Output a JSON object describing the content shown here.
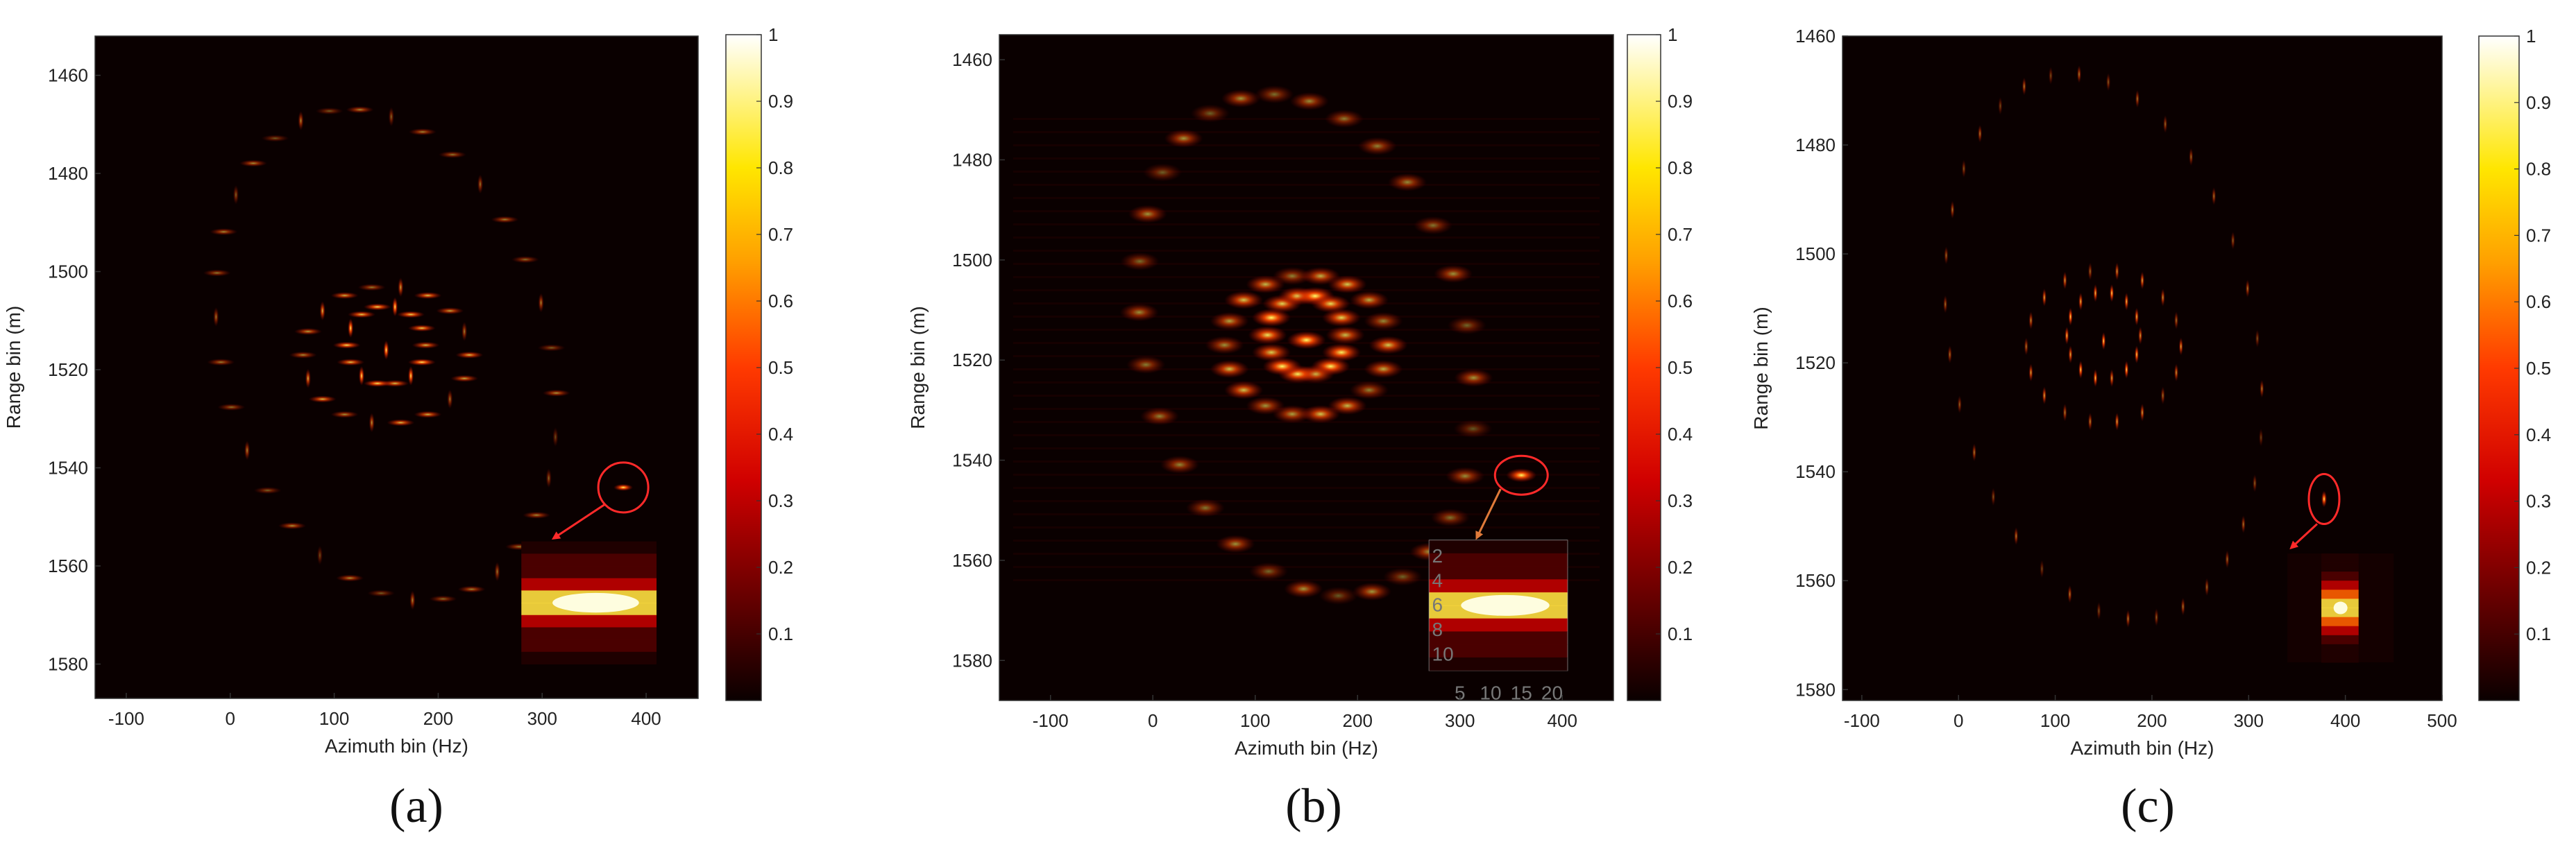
{
  "chart_data": [
    {
      "type": "heatmap",
      "panel_label": "(a)",
      "xlabel": "Azimuth bin (Hz)",
      "ylabel": "Range bin (m)",
      "xlim": [
        -130,
        450
      ],
      "ylim": [
        1452,
        1587
      ],
      "x_ticks": [
        "-100",
        "0",
        "100",
        "200",
        "300",
        "400"
      ],
      "y_ticks": [
        "1460",
        "1480",
        "1500",
        "1520",
        "1540",
        "1560",
        "1580"
      ],
      "colorbar": {
        "min": 0,
        "max": 1,
        "ticks": [
          "0.1",
          "0.2",
          "0.3",
          "0.4",
          "0.5",
          "0.6",
          "0.7",
          "0.8",
          "0.9",
          "1"
        ]
      },
      "highlight": {
        "x": 378,
        "y": 1544
      },
      "inset": {
        "x_range": [
          280,
          410
        ],
        "y_range": [
          1555,
          1580
        ]
      }
    },
    {
      "type": "heatmap",
      "panel_label": "(b)",
      "xlabel": "Azimuth bin (Hz)",
      "ylabel": "Range bin (m)",
      "xlim": [
        -150,
        450
      ],
      "ylim": [
        1455,
        1588
      ],
      "x_ticks": [
        "-100",
        "0",
        "100",
        "200",
        "300",
        "400"
      ],
      "y_ticks": [
        "1460",
        "1480",
        "1500",
        "1520",
        "1540",
        "1560",
        "1580"
      ],
      "colorbar": {
        "min": 0,
        "max": 1,
        "ticks": [
          "0.1",
          "0.2",
          "0.3",
          "0.4",
          "0.5",
          "0.6",
          "0.7",
          "0.8",
          "0.9",
          "1"
        ]
      },
      "highlight": {
        "x": 360,
        "y": 1543
      },
      "inset": {
        "x_range": [
          270,
          405
        ],
        "y_range": [
          1556,
          1582
        ],
        "x_ticks": [
          "5",
          "10",
          "15",
          "20"
        ],
        "y_ticks": [
          "2",
          "4",
          "6",
          "8",
          "10"
        ]
      }
    },
    {
      "type": "heatmap",
      "panel_label": "(c)",
      "xlabel": "Azimuth bin (Hz)",
      "ylabel": "Range bin (m)",
      "xlim": [
        -120,
        500
      ],
      "ylim": [
        1460,
        1582
      ],
      "x_ticks": [
        "-100",
        "0",
        "100",
        "200",
        "300",
        "400",
        "500"
      ],
      "y_ticks": [
        "1460",
        "1480",
        "1500",
        "1520",
        "1540",
        "1560",
        "1580"
      ],
      "colorbar": {
        "min": 0,
        "max": 1,
        "ticks": [
          "0.1",
          "0.2",
          "0.3",
          "0.4",
          "0.5",
          "0.6",
          "0.7",
          "0.8",
          "0.9",
          "1"
        ]
      },
      "highlight": {
        "x": 378,
        "y": 1545
      },
      "inset": {
        "x_range": [
          340,
          450
        ],
        "y_range": [
          1555,
          1575
        ]
      }
    }
  ]
}
